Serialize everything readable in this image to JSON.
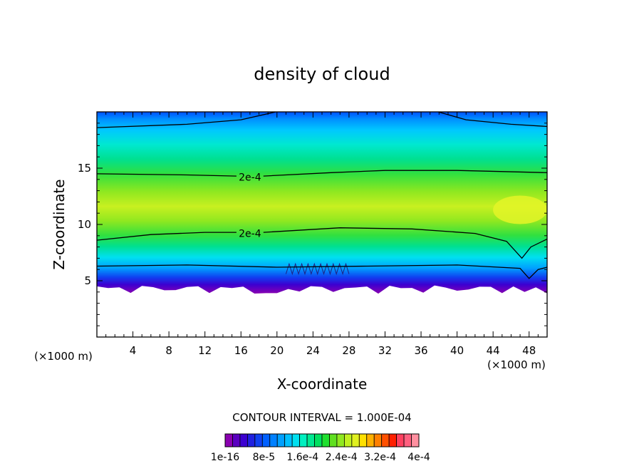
{
  "chart_data": {
    "type": "contour",
    "title": "density of cloud",
    "xlabel": "X-coordinate",
    "ylabel": "Z-coordinate",
    "x_unit_left": "(×1000 m)",
    "x_unit_right": "(×1000 m)",
    "xlim": [
      0,
      50
    ],
    "ylim": [
      0,
      20
    ],
    "x_ticks": [
      4,
      8,
      12,
      16,
      20,
      24,
      28,
      32,
      36,
      40,
      44,
      48
    ],
    "y_ticks": [
      5,
      10,
      15
    ],
    "x_tick_labels": [
      "4",
      "8",
      "12",
      "16",
      "20",
      "24",
      "28",
      "32",
      "36",
      "40",
      "44",
      "48"
    ],
    "y_tick_labels": [
      "5",
      "10",
      "15"
    ],
    "contour_labels": [
      {
        "text": "2e-4",
        "x": 17,
        "z": 14.2
      },
      {
        "text": "2e-4",
        "x": 17,
        "z": 9.2
      }
    ],
    "contour_interval_text": "CONTOUR INTERVAL = 1.000E-04",
    "colorbar": {
      "colors": [
        "#8a00b0",
        "#5a00c0",
        "#3c00d0",
        "#2020e0",
        "#1040f0",
        "#0060ff",
        "#0080ff",
        "#00a0ff",
        "#00c0ff",
        "#00e0f0",
        "#00f0c0",
        "#00e890",
        "#00e060",
        "#20e030",
        "#60e020",
        "#90e820",
        "#c0f020",
        "#e0f020",
        "#ffe000",
        "#ffb000",
        "#ff8000",
        "#ff5000",
        "#ff2000",
        "#ff4060",
        "#ff6080",
        "#ff90a0"
      ],
      "tick_labels": [
        "1e-16",
        "8e-5",
        "1.6e-4",
        "2.4e-4",
        "3.2e-4",
        "4e-4"
      ]
    }
  }
}
